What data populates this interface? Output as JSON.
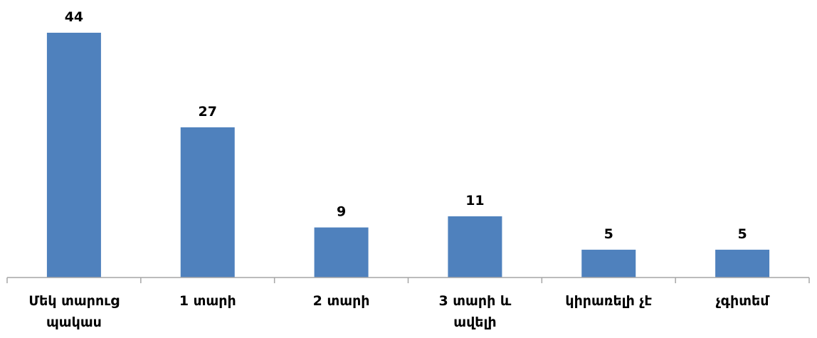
{
  "chart_data": {
    "type": "bar",
    "title": "",
    "xlabel": "",
    "ylabel": "",
    "categories": [
      [
        "Մեկ տարուց",
        "պակաս"
      ],
      [
        "1 տարի"
      ],
      [
        "2 տարի"
      ],
      [
        "3 տարի և",
        "ավելի"
      ],
      [
        "կիրառելի չէ"
      ],
      [
        "չգիտեմ"
      ]
    ],
    "values": [
      44,
      27,
      9,
      11,
      5,
      5
    ],
    "data_labels": [
      "44",
      "27",
      "9",
      "11",
      "5",
      "5"
    ],
    "ylim": [
      0,
      46
    ],
    "grid": false,
    "legend": "none",
    "bar_color": "#4f81bd",
    "axis_color": "#a6a6a6"
  }
}
